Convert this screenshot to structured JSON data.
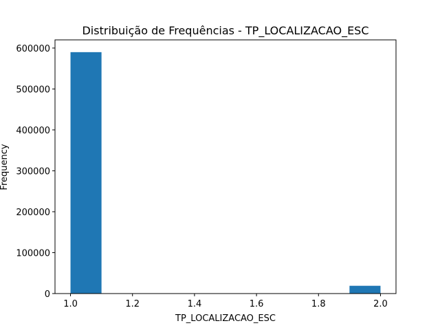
{
  "chart_data": {
    "type": "bar",
    "title": "Distribuição de Frequências - TP_LOCALIZACAO_ESC",
    "xlabel": "TP_LOCALIZACAO_ESC",
    "ylabel": "Frequency",
    "xlim": [
      0.95,
      2.05
    ],
    "ylim": [
      0,
      620000
    ],
    "x_ticks": [
      "1.0",
      "1.2",
      "1.4",
      "1.6",
      "1.8",
      "2.0"
    ],
    "y_ticks": [
      "0",
      "100000",
      "200000",
      "300000",
      "400000",
      "500000",
      "600000"
    ],
    "bins": [
      {
        "start": 1.0,
        "end": 1.1,
        "value": 590000
      },
      {
        "start": 1.1,
        "end": 1.2,
        "value": 0
      },
      {
        "start": 1.2,
        "end": 1.3,
        "value": 0
      },
      {
        "start": 1.3,
        "end": 1.4,
        "value": 0
      },
      {
        "start": 1.4,
        "end": 1.5,
        "value": 0
      },
      {
        "start": 1.5,
        "end": 1.6,
        "value": 0
      },
      {
        "start": 1.6,
        "end": 1.7,
        "value": 0
      },
      {
        "start": 1.7,
        "end": 1.8,
        "value": 0
      },
      {
        "start": 1.8,
        "end": 1.9,
        "value": 0
      },
      {
        "start": 1.9,
        "end": 2.0,
        "value": 19000
      }
    ],
    "grid": false,
    "colors": {
      "bar": "#1f77b4"
    }
  }
}
